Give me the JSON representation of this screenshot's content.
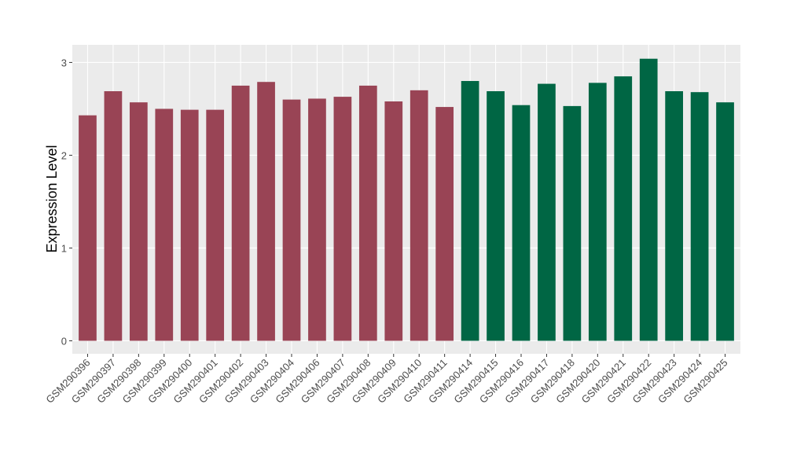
{
  "chart_data": {
    "type": "bar",
    "y_label": "Expression Level",
    "categories": [
      "GSM290396",
      "GSM290397",
      "GSM290398",
      "GSM290399",
      "GSM290400",
      "GSM290401",
      "GSM290402",
      "GSM290403",
      "GSM290404",
      "GSM290406",
      "GSM290407",
      "GSM290408",
      "GSM290409",
      "GSM290410",
      "GSM290411",
      "GSM290414",
      "GSM290415",
      "GSM290416",
      "GSM290417",
      "GSM290418",
      "GSM290420",
      "GSM290421",
      "GSM290422",
      "GSM290423",
      "GSM290424",
      "GSM290425"
    ],
    "values": [
      2.43,
      2.69,
      2.57,
      2.5,
      2.49,
      2.49,
      2.75,
      2.79,
      2.6,
      2.61,
      2.63,
      2.75,
      2.58,
      2.7,
      2.52,
      2.8,
      2.69,
      2.54,
      2.77,
      2.53,
      2.78,
      2.85,
      3.04,
      2.69,
      2.68,
      2.57
    ],
    "colors": [
      "#994455",
      "#994455",
      "#994455",
      "#994455",
      "#994455",
      "#994455",
      "#994455",
      "#994455",
      "#994455",
      "#994455",
      "#994455",
      "#994455",
      "#994455",
      "#994455",
      "#994455",
      "#006644",
      "#006644",
      "#006644",
      "#006644",
      "#006644",
      "#006644",
      "#006644",
      "#006644",
      "#006644",
      "#006644",
      "#006644"
    ],
    "ylim": [
      -0.14,
      3.19
    ],
    "yticks": [
      0,
      1,
      2,
      3
    ],
    "grid": true
  }
}
